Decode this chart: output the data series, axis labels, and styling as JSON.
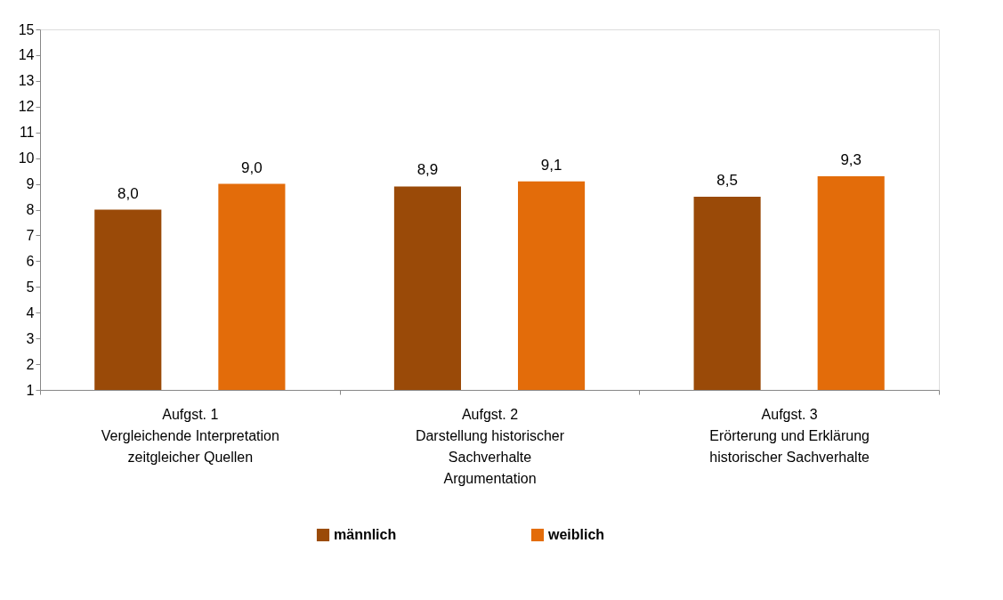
{
  "chart_data": {
    "type": "bar",
    "categories": [
      "Aufgst. 1\nVergleichende Interpretation\nzeitgleicher Quellen",
      "Aufgst. 2\nDarstellung historischer\nSachverhalte\nArgumentation",
      "Aufgst. 3\nErörterung und Erklärung\nhistorischer Sachverhalte"
    ],
    "series": [
      {
        "name": "männlich",
        "color": "#9a4a08",
        "values": [
          8.0,
          8.9,
          8.5
        ],
        "value_labels": [
          "8,0",
          "8,9",
          "8,5"
        ]
      },
      {
        "name": "weiblich",
        "color": "#e36c0a",
        "values": [
          9.0,
          9.1,
          9.3
        ],
        "value_labels": [
          "9,0",
          "9,1",
          "9,3"
        ]
      }
    ],
    "ylim": [
      1,
      15
    ],
    "yticks": [
      1,
      2,
      3,
      4,
      5,
      6,
      7,
      8,
      9,
      10,
      11,
      12,
      13,
      14,
      15
    ],
    "grid": false,
    "legend": "bottom"
  }
}
